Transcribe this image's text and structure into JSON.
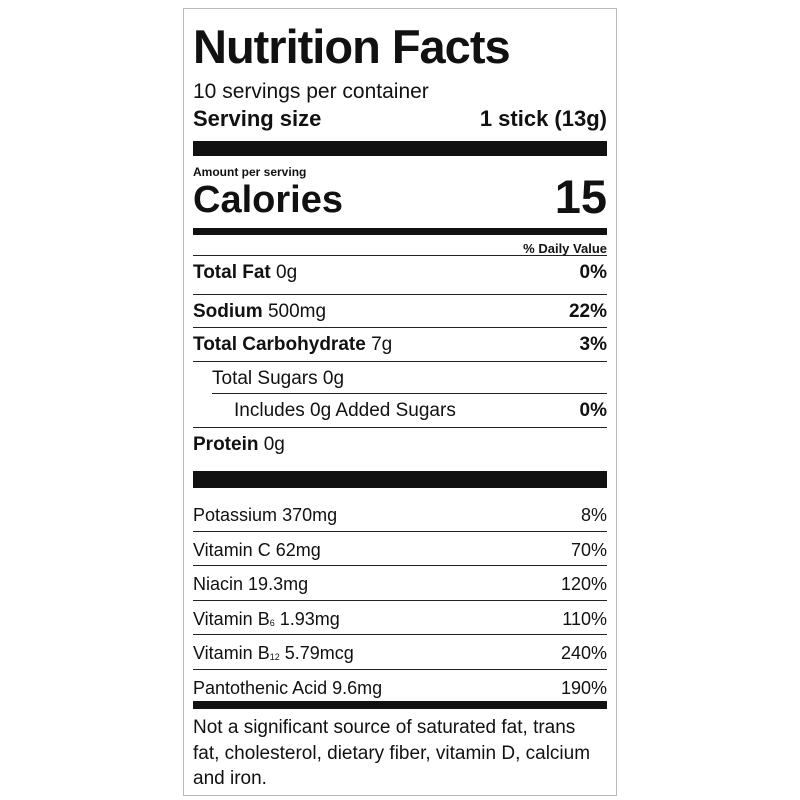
{
  "title": "Nutrition Facts",
  "servings": "10 servings per container",
  "serving_size": {
    "label": "Serving size",
    "value": "1 stick (13g)"
  },
  "amount_per_serving": "Amount per serving",
  "calories": {
    "label": "Calories",
    "value": "15"
  },
  "daily_value_header": "% Daily Value",
  "nutrients": [
    {
      "label": "Total Fat",
      "amount": "0g",
      "dv": "0%"
    },
    {
      "label": "Sodium",
      "amount": "500mg",
      "dv": "22%"
    },
    {
      "label": "Total Carbohydrate",
      "amount": "7g",
      "dv": "3%"
    },
    {
      "label": "Total Sugars 0g"
    },
    {
      "label": "Includes 0g Added Sugars",
      "dv": "0%"
    },
    {
      "label": "Protein",
      "amount": "0g"
    }
  ],
  "vitamins": [
    {
      "label": "Potassium",
      "amount": "370mg",
      "dv": "8%"
    },
    {
      "label": "Vitamin C",
      "amount": "62mg",
      "dv": "70%"
    },
    {
      "label": "Niacin",
      "amount": "19.3mg",
      "dv": "120%"
    },
    {
      "label": "Vitamin B",
      "subscript": "6",
      "amount": "1.93mg",
      "dv": "110%"
    },
    {
      "label": "Vitamin B",
      "subscript": "12",
      "amount": "5.79mcg",
      "dv": "240%"
    },
    {
      "label": "Pantothenic Acid",
      "amount": "9.6mg",
      "dv": "190%"
    }
  ],
  "footnote": "Not a significant source of saturated fat, trans fat, cholesterol, dietary fiber, vitamin D, calcium and iron."
}
